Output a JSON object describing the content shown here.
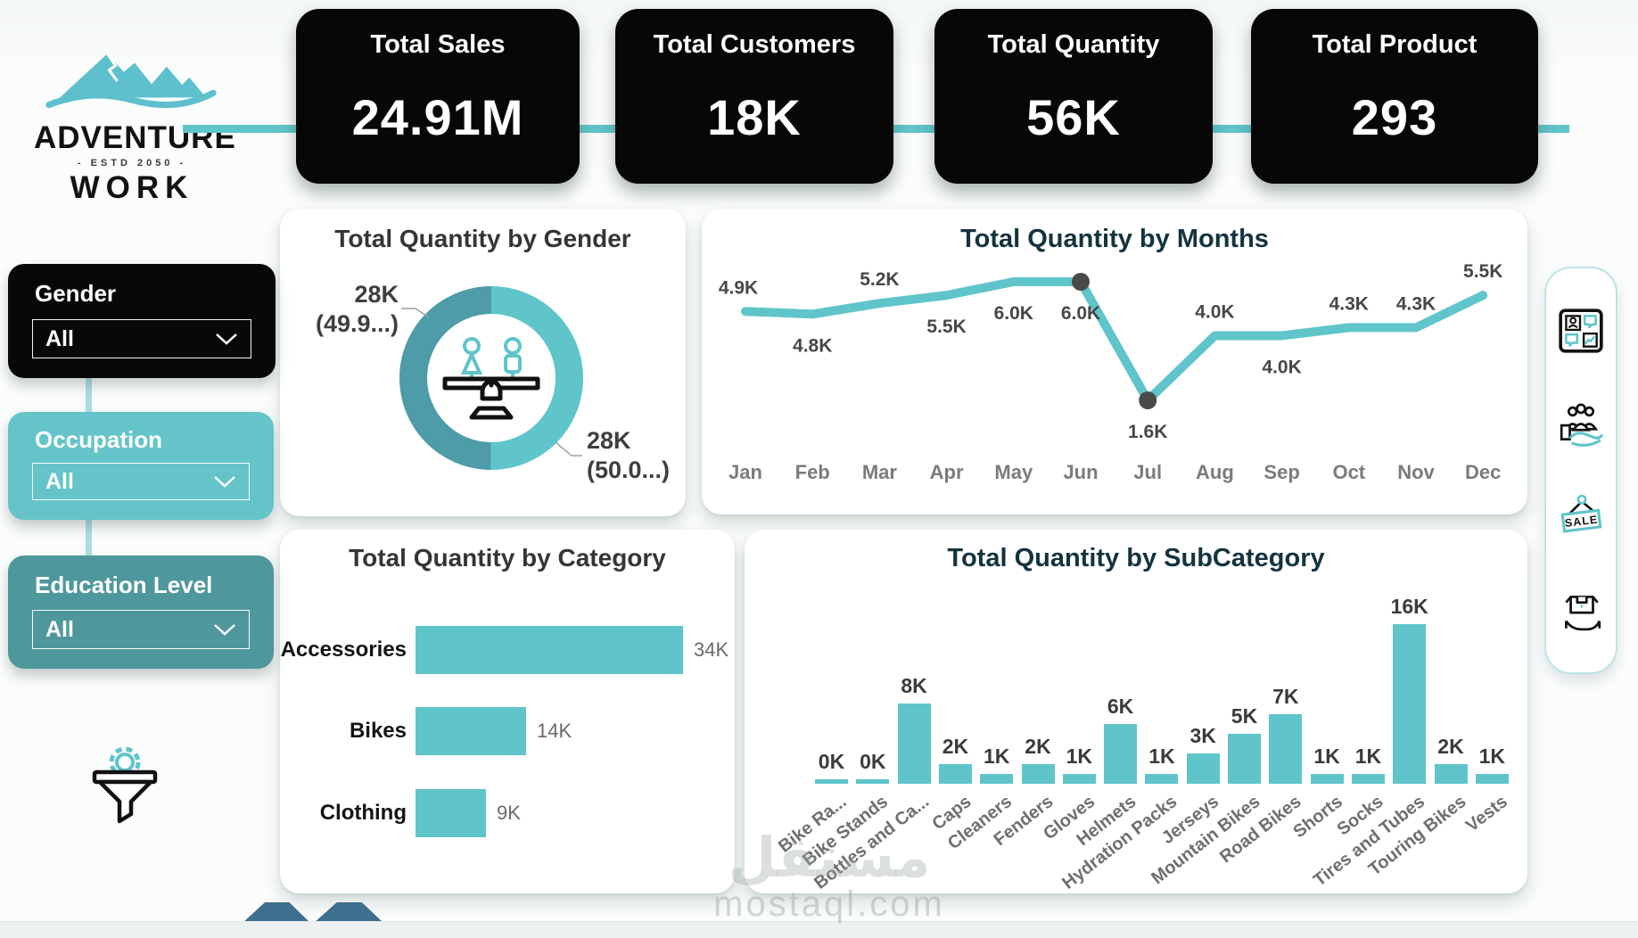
{
  "logo": {
    "line1": "ADVENTURE",
    "estd": "- ESTD 2050 -",
    "line2": "WORK"
  },
  "kpis": [
    {
      "label": "Total Sales",
      "value": "24.91M"
    },
    {
      "label": "Total Customers",
      "value": "18K"
    },
    {
      "label": "Total Quantity",
      "value": "56K"
    },
    {
      "label": "Total Product",
      "value": "293"
    }
  ],
  "filters": [
    {
      "label": "Gender",
      "value": "All"
    },
    {
      "label": "Occupation",
      "value": "All"
    },
    {
      "label": "Education Level",
      "value": "All"
    }
  ],
  "colors": {
    "accent_light": "#5fc5ca",
    "accent_dark": "#4d9ca8",
    "occupation_card": "#64c4c9",
    "education_card": "#4e979d",
    "kpi_card": "#070707",
    "slate_shape": "#3e6f8e"
  },
  "right_toolbar": {
    "sale_text": "SALE",
    "icons": [
      "dashboard-grid-icon",
      "customers-group-icon",
      "sale-sign-icon",
      "product-box-icon"
    ]
  },
  "watermark": {
    "arabic": "مستقل",
    "domain": "mostaql.com"
  },
  "chart_data": [
    {
      "id": "gender",
      "type": "donut",
      "title": "Total Quantity by Gender",
      "center_icon": "gender-balance-icon",
      "slices": [
        {
          "label": "28K",
          "pct_label": "(49.9...)",
          "value": 49.94,
          "color": "#4d9ca8"
        },
        {
          "label": "28K",
          "pct_label": "(50.0...)",
          "value": 50.06,
          "color": "#5fc5ca"
        }
      ]
    },
    {
      "id": "months",
      "type": "line",
      "title": "Total Quantity by Months",
      "categories": [
        "Jan",
        "Feb",
        "Mar",
        "Apr",
        "May",
        "Jun",
        "Jul",
        "Aug",
        "Sep",
        "Oct",
        "Nov",
        "Dec"
      ],
      "values": [
        4.9,
        4.8,
        5.2,
        5.5,
        6.0,
        6.0,
        1.6,
        4.0,
        4.0,
        4.3,
        4.3,
        5.5
      ],
      "labels": [
        "4.9K",
        "4.8K",
        "5.2K",
        "5.5K",
        "6.0K",
        "6.0K",
        "1.6K",
        "4.0K",
        "4.0K",
        "4.3K",
        "4.3K",
        "5.5K"
      ],
      "label_side": [
        "above",
        "below",
        "above",
        "below",
        "below",
        "below",
        "below",
        "above",
        "below",
        "above",
        "above",
        "above"
      ],
      "markers": [
        5,
        6
      ],
      "line_color": "#5fc5ca",
      "marker_color": "#4a4a4a",
      "ylim": [
        1.6,
        6.0
      ],
      "grid": false,
      "legend": "none"
    },
    {
      "id": "category",
      "type": "bar",
      "title": "Total Quantity by Category",
      "categories": [
        "Accessories",
        "Bikes",
        "Clothing"
      ],
      "values": [
        34,
        14,
        9
      ],
      "labels": [
        "34K",
        "14K",
        "9K"
      ],
      "bar_color": "#5fc5ca",
      "xmax": 34
    },
    {
      "id": "subcategory",
      "type": "column",
      "title": "Total Quantity by SubCategory",
      "categories": [
        "Bike Ra...",
        "Bike Stands",
        "Bottles and Ca...",
        "Caps",
        "Cleaners",
        "Fenders",
        "Gloves",
        "Helmets",
        "Hydration Packs",
        "Jerseys",
        "Mountain Bikes",
        "Road Bikes",
        "Shorts",
        "Socks",
        "Tires and Tubes",
        "Touring Bikes",
        "Vests"
      ],
      "values": [
        0.4,
        0.4,
        8,
        2,
        1,
        2,
        1,
        6,
        1,
        3,
        5,
        7,
        1,
        1,
        16,
        2,
        1
      ],
      "labels": [
        "0K",
        "0K",
        "8K",
        "2K",
        "1K",
        "2K",
        "1K",
        "6K",
        "1K",
        "3K",
        "5K",
        "7K",
        "1K",
        "1K",
        "16K",
        "2K",
        "1K"
      ],
      "bar_color": "#5fc5ca",
      "ymax": 16
    }
  ]
}
